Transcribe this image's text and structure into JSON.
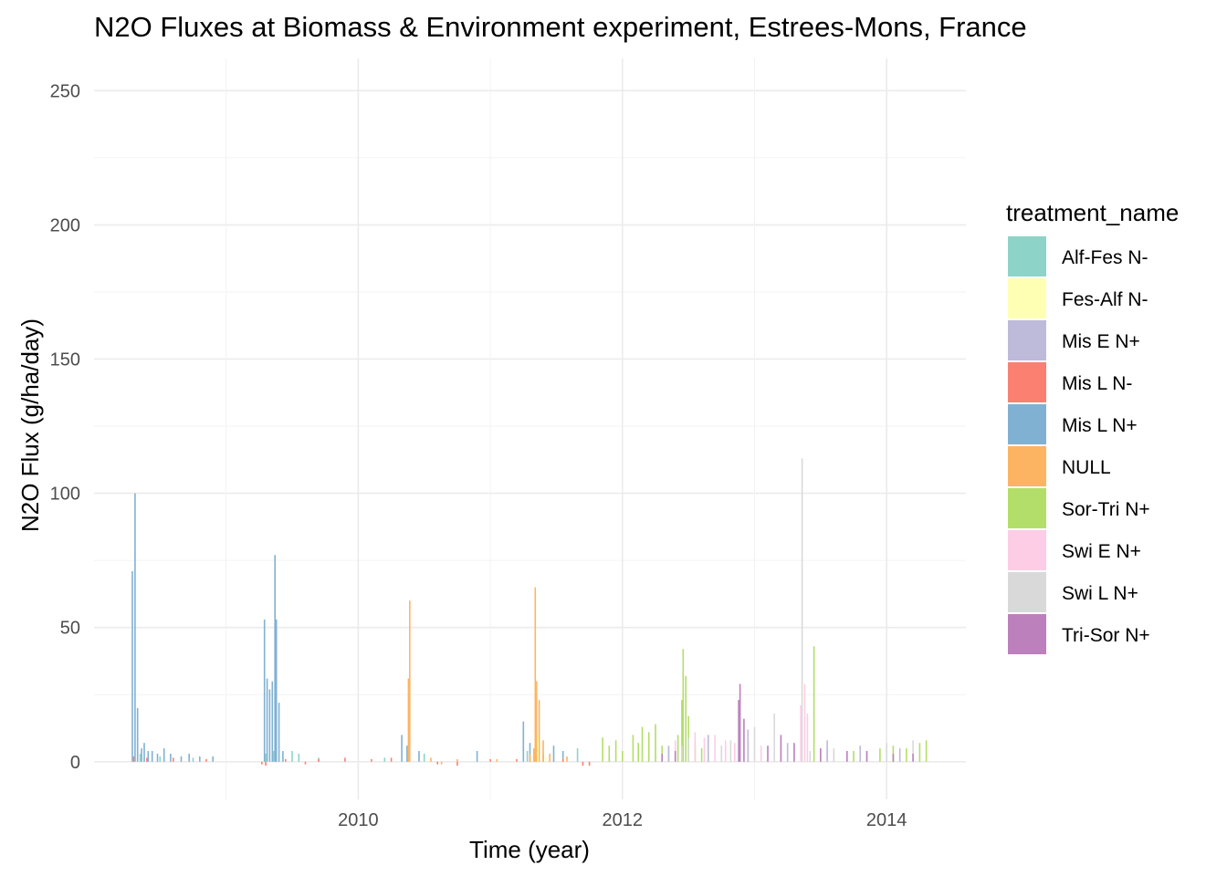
{
  "chart_data": {
    "type": "bar",
    "title": "N2O Fluxes at Biomass & Environment experiment, Estrees-Mons, France",
    "xlabel": "Time (year)",
    "ylabel": "N2O Flux (g/ha/day)",
    "x_ticks": [
      "2010",
      "2012",
      "2014"
    ],
    "y_ticks": [
      "0",
      "50",
      "100",
      "150",
      "200",
      "250"
    ],
    "xlim": [
      2008.0,
      2014.6
    ],
    "ylim": [
      -14,
      262
    ],
    "grid": true,
    "legend": {
      "title": "treatment_name",
      "placement": "right",
      "entries": [
        {
          "label": "Alf-Fes N-",
          "color": "#8DD3C7"
        },
        {
          "label": "Fes-Alf N-",
          "color": "#FFFFB3"
        },
        {
          "label": "Mis E N+",
          "color": "#BEBADA"
        },
        {
          "label": "Mis L N-",
          "color": "#FB8072"
        },
        {
          "label": "Mis L N+",
          "color": "#80B1D3"
        },
        {
          "label": "NULL",
          "color": "#FDB462"
        },
        {
          "label": "Sor-Tri N+",
          "color": "#B3DE69"
        },
        {
          "label": "Swi E N+",
          "color": "#FCCDE5"
        },
        {
          "label": "Swi L N+",
          "color": "#D9D9D9"
        },
        {
          "label": "Tri-Sor N+",
          "color": "#BC80BD"
        }
      ]
    },
    "series": [
      {
        "name": "Mis L N+",
        "points": [
          [
            2008.29,
            71
          ],
          [
            2008.31,
            100
          ],
          [
            2008.33,
            20
          ],
          [
            2008.36,
            5
          ],
          [
            2008.38,
            7
          ],
          [
            2008.41,
            4
          ],
          [
            2008.44,
            4
          ],
          [
            2008.48,
            3
          ],
          [
            2008.53,
            5
          ],
          [
            2008.58,
            3
          ],
          [
            2008.66,
            2
          ],
          [
            2008.72,
            3
          ],
          [
            2008.8,
            2
          ],
          [
            2008.9,
            2
          ],
          [
            2009.29,
            53
          ],
          [
            2009.31,
            31
          ],
          [
            2009.33,
            27
          ],
          [
            2009.35,
            30
          ],
          [
            2009.37,
            77
          ],
          [
            2009.38,
            53
          ],
          [
            2009.4,
            22
          ],
          [
            2009.43,
            4
          ],
          [
            2010.33,
            10
          ],
          [
            2010.37,
            6
          ],
          [
            2010.46,
            4
          ],
          [
            2010.9,
            4
          ],
          [
            2011.25,
            15
          ],
          [
            2011.3,
            7
          ],
          [
            2011.48,
            6
          ],
          [
            2011.55,
            4
          ]
        ]
      },
      {
        "name": "Alf-Fes N-",
        "points": [
          [
            2008.35,
            3
          ],
          [
            2008.5,
            2
          ],
          [
            2008.75,
            1.5
          ],
          [
            2009.3,
            3
          ],
          [
            2009.36,
            4
          ],
          [
            2009.5,
            4
          ],
          [
            2009.55,
            3
          ],
          [
            2009.7,
            1.5
          ],
          [
            2010.2,
            1.5
          ],
          [
            2010.5,
            3
          ],
          [
            2011.28,
            4
          ],
          [
            2011.4,
            3
          ],
          [
            2011.66,
            5
          ],
          [
            2011.9,
            2
          ],
          [
            2012.2,
            2
          ]
        ]
      },
      {
        "name": "Mis L N-",
        "points": [
          [
            2008.3,
            2
          ],
          [
            2008.4,
            1.5
          ],
          [
            2008.6,
            1.5
          ],
          [
            2008.85,
            1
          ],
          [
            2009.27,
            -1
          ],
          [
            2009.3,
            -1.5
          ],
          [
            2009.45,
            1
          ],
          [
            2009.6,
            -1
          ],
          [
            2009.7,
            1
          ],
          [
            2009.9,
            1.5
          ],
          [
            2010.1,
            1
          ],
          [
            2010.25,
            1.5
          ],
          [
            2010.6,
            -1
          ],
          [
            2010.75,
            -1.5
          ],
          [
            2011.0,
            1
          ],
          [
            2011.2,
            1
          ],
          [
            2011.55,
            1
          ],
          [
            2011.7,
            -1.5
          ],
          [
            2011.75,
            -1.5
          ]
        ]
      },
      {
        "name": "NULL",
        "points": [
          [
            2010.38,
            31
          ],
          [
            2010.39,
            60
          ],
          [
            2010.55,
            1.5
          ],
          [
            2010.63,
            -1
          ],
          [
            2010.75,
            1
          ],
          [
            2011.05,
            1
          ],
          [
            2011.3,
            3
          ],
          [
            2011.33,
            5
          ],
          [
            2011.34,
            65
          ],
          [
            2011.35,
            30
          ],
          [
            2011.37,
            23
          ],
          [
            2011.4,
            8
          ],
          [
            2011.45,
            3
          ],
          [
            2011.58,
            2
          ]
        ]
      },
      {
        "name": "Fes-Alf N-",
        "points": [
          [
            2011.36,
            10
          ],
          [
            2011.42,
            2
          ]
        ]
      },
      {
        "name": "Sor-Tri N+",
        "points": [
          [
            2011.85,
            9
          ],
          [
            2011.9,
            6
          ],
          [
            2011.95,
            8
          ],
          [
            2012.0,
            4
          ],
          [
            2012.08,
            10
          ],
          [
            2012.12,
            7
          ],
          [
            2012.15,
            13
          ],
          [
            2012.2,
            11
          ],
          [
            2012.25,
            14
          ],
          [
            2012.3,
            6
          ],
          [
            2012.35,
            5
          ],
          [
            2012.42,
            10
          ],
          [
            2012.45,
            23
          ],
          [
            2012.46,
            42
          ],
          [
            2012.48,
            32
          ],
          [
            2012.5,
            17
          ],
          [
            2012.55,
            6
          ],
          [
            2012.6,
            5
          ],
          [
            2012.65,
            5
          ],
          [
            2013.45,
            43
          ],
          [
            2013.5,
            5
          ],
          [
            2013.6,
            3
          ],
          [
            2013.75,
            4
          ],
          [
            2013.95,
            5
          ],
          [
            2014.05,
            6
          ],
          [
            2014.15,
            5
          ],
          [
            2014.25,
            7
          ],
          [
            2014.3,
            8
          ]
        ]
      },
      {
        "name": "Swi E N+",
        "points": [
          [
            2012.4,
            8
          ],
          [
            2012.55,
            11
          ],
          [
            2012.62,
            9
          ],
          [
            2012.7,
            10
          ],
          [
            2012.78,
            8
          ],
          [
            2012.85,
            7
          ],
          [
            2013.05,
            6
          ],
          [
            2013.2,
            7
          ],
          [
            2013.35,
            21
          ],
          [
            2013.38,
            29
          ],
          [
            2013.4,
            18
          ],
          [
            2013.55,
            5
          ],
          [
            2013.7,
            4
          ],
          [
            2014.1,
            4
          ]
        ]
      },
      {
        "name": "Swi L N+",
        "points": [
          [
            2012.45,
            6
          ],
          [
            2012.5,
            9
          ],
          [
            2012.75,
            6
          ],
          [
            2012.82,
            8
          ],
          [
            2013.0,
            13
          ],
          [
            2013.15,
            18
          ],
          [
            2013.36,
            113
          ],
          [
            2013.42,
            4
          ],
          [
            2013.6,
            5
          ],
          [
            2013.85,
            4
          ],
          [
            2014.0,
            7
          ],
          [
            2014.2,
            8
          ]
        ]
      },
      {
        "name": "Tri-Sor N+",
        "points": [
          [
            2012.3,
            3
          ],
          [
            2012.4,
            4
          ],
          [
            2012.88,
            23
          ],
          [
            2012.89,
            29
          ],
          [
            2012.92,
            16
          ],
          [
            2012.95,
            8
          ],
          [
            2013.1,
            6
          ],
          [
            2013.2,
            10
          ],
          [
            2013.3,
            7
          ],
          [
            2013.5,
            5
          ],
          [
            2013.7,
            4
          ],
          [
            2013.85,
            4
          ],
          [
            2014.05,
            3
          ],
          [
            2014.2,
            3
          ]
        ]
      },
      {
        "name": "Mis E N+",
        "points": [
          [
            2012.35,
            6
          ],
          [
            2012.65,
            10
          ],
          [
            2012.95,
            12
          ],
          [
            2013.25,
            7
          ],
          [
            2013.55,
            8
          ],
          [
            2013.8,
            6
          ],
          [
            2014.1,
            5
          ]
        ]
      }
    ]
  }
}
